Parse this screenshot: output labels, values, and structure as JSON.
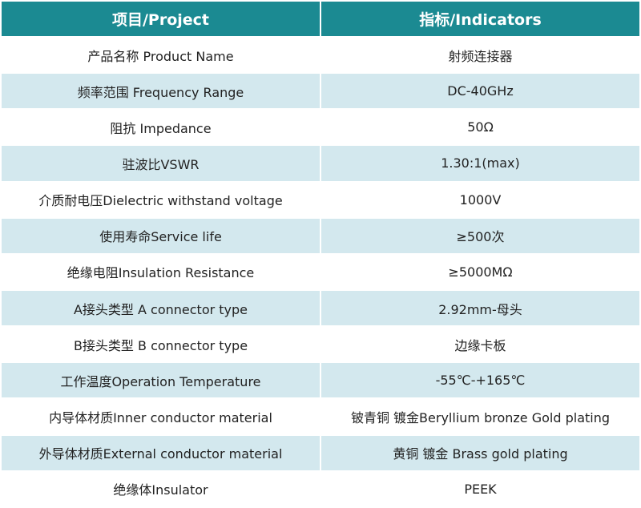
{
  "table": {
    "columns": [
      "项目/Project",
      "指标/Indicators"
    ],
    "rows": [
      [
        "产品名称 Product Name",
        "射频连接器"
      ],
      [
        "频率范围 Frequency Range",
        "DC-40GHz"
      ],
      [
        "阻抗 Impedance",
        "50Ω"
      ],
      [
        "驻波比VSWR",
        "1.30:1(max)"
      ],
      [
        "介质耐电压Dielectric withstand voltage",
        "1000V"
      ],
      [
        "使用寿命Service life",
        "≥500次"
      ],
      [
        "绝缘电阻Insulation Resistance",
        "≥5000MΩ"
      ],
      [
        "A接头类型 A connector type",
        "2.92mm-母头"
      ],
      [
        "B接头类型 B connector type",
        "边缘卡板"
      ],
      [
        "工作温度Operation Temperature",
        "-55℃-+165℃"
      ],
      [
        "内导体材质Inner conductor material",
        "铍青铜 镀金Beryllium bronze Gold plating"
      ],
      [
        "外导体材质External conductor material",
        "黄铜 镀金 Brass gold plating"
      ],
      [
        "绝缘体Insulator",
        "PEEK"
      ]
    ]
  }
}
